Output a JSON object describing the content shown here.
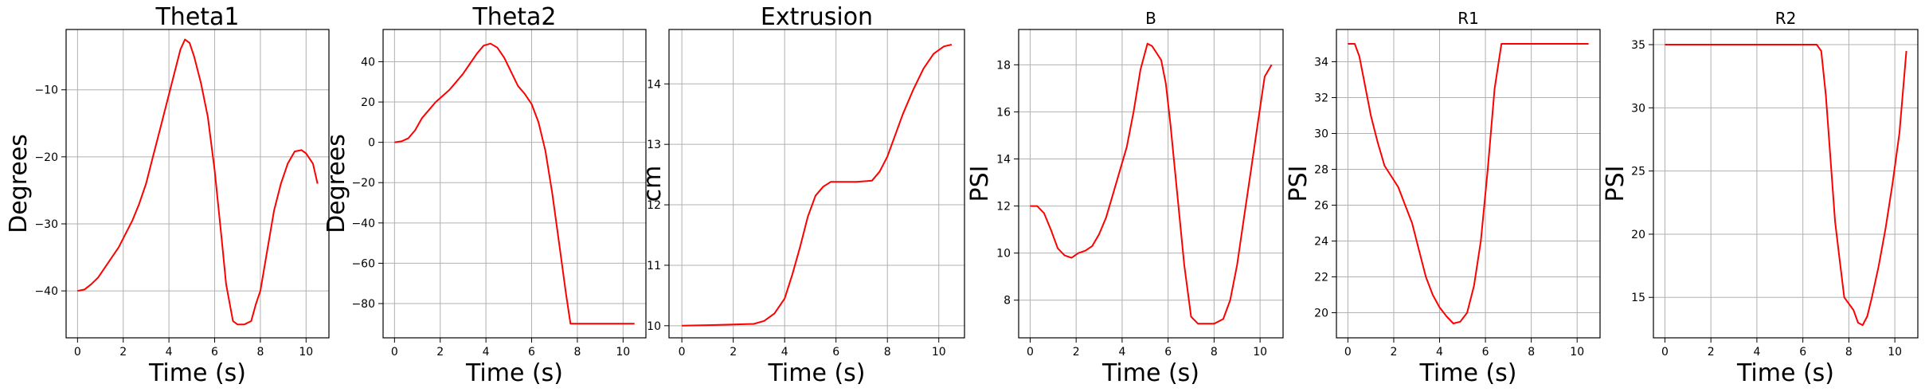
{
  "chart_data": [
    {
      "type": "line",
      "title": "Theta1",
      "xlabel": "Time (s)",
      "ylabel": "Degrees",
      "xlim": [
        -0.5,
        11
      ],
      "ylim": [
        -47,
        -1
      ],
      "xticks": [
        0,
        2,
        4,
        6,
        8,
        10
      ],
      "yticks": [
        -40,
        -30,
        -20,
        -10
      ],
      "ytick_labels": [
        "−40",
        "−30",
        "−20",
        "−10"
      ],
      "grid": true,
      "color": "#ff0000",
      "series": [
        {
          "x": [
            0,
            0.3,
            0.6,
            0.9,
            1.2,
            1.5,
            1.8,
            2.1,
            2.4,
            2.7,
            3.0,
            3.3,
            3.6,
            3.9,
            4.2,
            4.5,
            4.7,
            4.9,
            5.1,
            5.4,
            5.7,
            6.0,
            6.3,
            6.5,
            6.8,
            7.0,
            7.3,
            7.6,
            7.8,
            8.0,
            8.3,
            8.6,
            8.9,
            9.2,
            9.5,
            9.8,
            10.0,
            10.3,
            10.5
          ],
          "y": [
            -40,
            -39.8,
            -39,
            -38,
            -36.5,
            -35,
            -33.5,
            -31.5,
            -29.5,
            -27,
            -24,
            -20,
            -16,
            -12,
            -8,
            -4,
            -2.5,
            -3,
            -5,
            -9,
            -14,
            -22,
            -32,
            -39,
            -44.5,
            -45,
            -45,
            -44.5,
            -42,
            -40,
            -34,
            -28,
            -24,
            -21,
            -19.2,
            -19,
            -19.5,
            -21,
            -24
          ]
        }
      ]
    },
    {
      "type": "line",
      "title": "Theta2",
      "xlabel": "Time (s)",
      "ylabel": "Degrees",
      "xlim": [
        -0.5,
        11
      ],
      "ylim": [
        -97,
        56
      ],
      "xticks": [
        0,
        2,
        4,
        6,
        8,
        10
      ],
      "yticks": [
        -80,
        -60,
        -40,
        -20,
        0,
        20,
        40
      ],
      "ytick_labels": [
        "−80",
        "−60",
        "−40",
        "−20",
        "0",
        "20",
        "40"
      ],
      "grid": true,
      "color": "#ff0000",
      "series": [
        {
          "x": [
            0,
            0.3,
            0.6,
            0.9,
            1.2,
            1.5,
            1.8,
            2.1,
            2.4,
            2.7,
            3.0,
            3.3,
            3.6,
            3.9,
            4.2,
            4.5,
            4.8,
            5.1,
            5.4,
            5.7,
            6.0,
            6.3,
            6.6,
            6.9,
            7.2,
            7.5,
            7.7,
            8.0,
            8.5,
            9.0,
            9.5,
            10.0,
            10.5
          ],
          "y": [
            0,
            0.5,
            2,
            6,
            12,
            16,
            20,
            23,
            26,
            30,
            34,
            39,
            44,
            48,
            49,
            47,
            42,
            35,
            28,
            24,
            19,
            10,
            -4,
            -25,
            -50,
            -75,
            -90,
            -90,
            -90,
            -90,
            -90,
            -90,
            -90
          ]
        }
      ]
    },
    {
      "type": "line",
      "title": "Extrusion",
      "xlabel": "Time (s)",
      "ylabel": "cm",
      "xlim": [
        -0.5,
        11
      ],
      "ylim": [
        9.8,
        14.9
      ],
      "xticks": [
        0,
        2,
        4,
        6,
        8,
        10
      ],
      "yticks": [
        10,
        11,
        12,
        13,
        14
      ],
      "ytick_labels": [
        "10",
        "11",
        "12",
        "13",
        "14"
      ],
      "grid": true,
      "color": "#ff0000",
      "series": [
        {
          "x": [
            0,
            1,
            2,
            2.8,
            3.2,
            3.6,
            4.0,
            4.3,
            4.6,
            4.9,
            5.2,
            5.5,
            5.8,
            6.2,
            6.8,
            7.4,
            7.7,
            8.0,
            8.3,
            8.6,
            9.0,
            9.4,
            9.8,
            10.2,
            10.5
          ],
          "y": [
            10,
            10.01,
            10.02,
            10.03,
            10.08,
            10.2,
            10.45,
            10.85,
            11.3,
            11.8,
            12.15,
            12.3,
            12.38,
            12.38,
            12.38,
            12.4,
            12.55,
            12.8,
            13.15,
            13.5,
            13.9,
            14.25,
            14.5,
            14.62,
            14.65
          ]
        }
      ]
    },
    {
      "type": "line",
      "title": "B",
      "xlabel": "Time (s)",
      "ylabel": "PSI",
      "xlim": [
        -0.5,
        11
      ],
      "ylim": [
        6.4,
        19.5
      ],
      "xticks": [
        0,
        2,
        4,
        6,
        8,
        10
      ],
      "yticks": [
        8,
        10,
        12,
        14,
        16,
        18
      ],
      "ytick_labels": [
        "8",
        "10",
        "12",
        "14",
        "16",
        "18"
      ],
      "grid": true,
      "color": "#ff0000",
      "series": [
        {
          "x": [
            0,
            0.3,
            0.6,
            0.9,
            1.2,
            1.5,
            1.8,
            2.1,
            2.4,
            2.7,
            3.0,
            3.3,
            3.6,
            3.9,
            4.2,
            4.5,
            4.8,
            5.1,
            5.3,
            5.5,
            5.7,
            5.9,
            6.1,
            6.4,
            6.7,
            7.0,
            7.3,
            7.6,
            8.0,
            8.4,
            8.7,
            9.0,
            9.3,
            9.6,
            9.9,
            10.2,
            10.5
          ],
          "y": [
            12,
            12,
            11.7,
            11,
            10.2,
            9.9,
            9.8,
            10,
            10.1,
            10.3,
            10.8,
            11.5,
            12.5,
            13.5,
            14.5,
            16,
            17.8,
            18.9,
            18.8,
            18.5,
            18.2,
            17.2,
            15.5,
            12.5,
            9.5,
            7.3,
            7,
            7,
            7,
            7.2,
            8,
            9.5,
            11.5,
            13.5,
            15.5,
            17.5,
            18
          ]
        }
      ]
    },
    {
      "type": "line",
      "title": "R1",
      "xlabel": "Time (s)",
      "ylabel": "PSI",
      "xlim": [
        -0.5,
        11
      ],
      "ylim": [
        18.6,
        35.8
      ],
      "xticks": [
        0,
        2,
        4,
        6,
        8,
        10
      ],
      "yticks": [
        20,
        22,
        24,
        26,
        28,
        30,
        32,
        34
      ],
      "ytick_labels": [
        "20",
        "22",
        "24",
        "26",
        "28",
        "30",
        "32",
        "34"
      ],
      "grid": true,
      "color": "#ff0000",
      "series": [
        {
          "x": [
            0,
            0.3,
            0.5,
            0.7,
            1.0,
            1.3,
            1.6,
            1.9,
            2.2,
            2.5,
            2.8,
            3.1,
            3.4,
            3.7,
            4.0,
            4.3,
            4.6,
            4.9,
            5.2,
            5.5,
            5.8,
            6.1,
            6.4,
            6.7,
            7.0,
            7.5,
            8,
            9,
            10,
            10.5
          ],
          "y": [
            35,
            35,
            34.3,
            33,
            31,
            29.5,
            28.2,
            27.6,
            27,
            26,
            25,
            23.5,
            22,
            21,
            20.3,
            19.8,
            19.4,
            19.5,
            20,
            21.5,
            24,
            28,
            32.5,
            35,
            35,
            35,
            35,
            35,
            35,
            35
          ]
        }
      ]
    },
    {
      "type": "line",
      "title": "R2",
      "xlabel": "Time (s)",
      "ylabel": "PSI",
      "xlim": [
        -0.5,
        11
      ],
      "ylim": [
        11.8,
        36.2
      ],
      "xticks": [
        0,
        2,
        4,
        6,
        8,
        10
      ],
      "yticks": [
        15,
        20,
        25,
        30,
        35
      ],
      "ytick_labels": [
        "15",
        "20",
        "25",
        "30",
        "35"
      ],
      "grid": true,
      "color": "#ff0000",
      "series": [
        {
          "x": [
            0,
            2,
            4,
            6,
            6.6,
            6.8,
            7.0,
            7.2,
            7.4,
            7.6,
            7.8,
            8.0,
            8.2,
            8.4,
            8.6,
            8.8,
            9.0,
            9.3,
            9.6,
            9.9,
            10.2,
            10.5
          ],
          "y": [
            35,
            35,
            35,
            35,
            35,
            34.5,
            31,
            26,
            21,
            18,
            15,
            14.5,
            14,
            13,
            12.8,
            13.5,
            15,
            17.5,
            20.5,
            24,
            28,
            34.5
          ]
        }
      ]
    }
  ]
}
